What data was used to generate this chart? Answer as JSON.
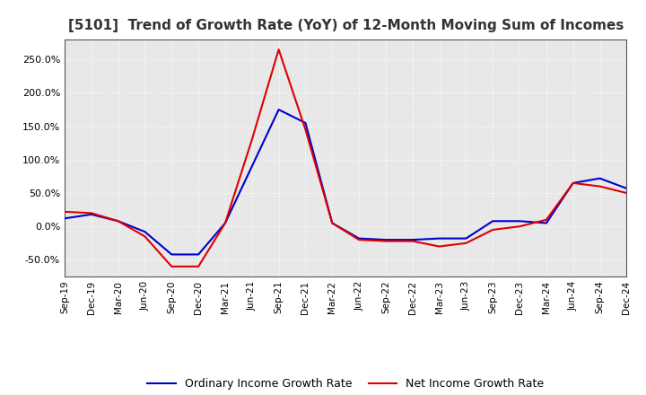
{
  "title": "[5101]  Trend of Growth Rate (YoY) of 12-Month Moving Sum of Incomes",
  "title_fontsize": 11,
  "ylim": [
    -75,
    280
  ],
  "yticks": [
    -50,
    0,
    50,
    100,
    150,
    200,
    250
  ],
  "background_color": "#ffffff",
  "plot_bg_color": "#e8e8e8",
  "grid_color": "#ffffff",
  "zero_line_color": "#555555",
  "ordinary_color": "#0000cc",
  "net_color": "#dd0000",
  "legend_labels": [
    "Ordinary Income Growth Rate",
    "Net Income Growth Rate"
  ],
  "x_labels": [
    "Sep-19",
    "Dec-19",
    "Mar-20",
    "Jun-20",
    "Sep-20",
    "Dec-20",
    "Mar-21",
    "Jun-21",
    "Sep-21",
    "Dec-21",
    "Mar-22",
    "Jun-22",
    "Sep-22",
    "Dec-22",
    "Mar-23",
    "Jun-23",
    "Sep-23",
    "Dec-23",
    "Mar-24",
    "Jun-24",
    "Sep-24",
    "Dec-24"
  ],
  "ordinary_income_growth": [
    12,
    18,
    8,
    -8,
    -42,
    -42,
    5,
    90,
    175,
    155,
    5,
    -18,
    -20,
    -20,
    -18,
    -18,
    8,
    8,
    5,
    65,
    72,
    57
  ],
  "net_income_growth": [
    22,
    20,
    8,
    -15,
    -60,
    -60,
    5,
    130,
    265,
    145,
    5,
    -20,
    -22,
    -22,
    -30,
    -25,
    -5,
    0,
    10,
    65,
    60,
    50
  ]
}
